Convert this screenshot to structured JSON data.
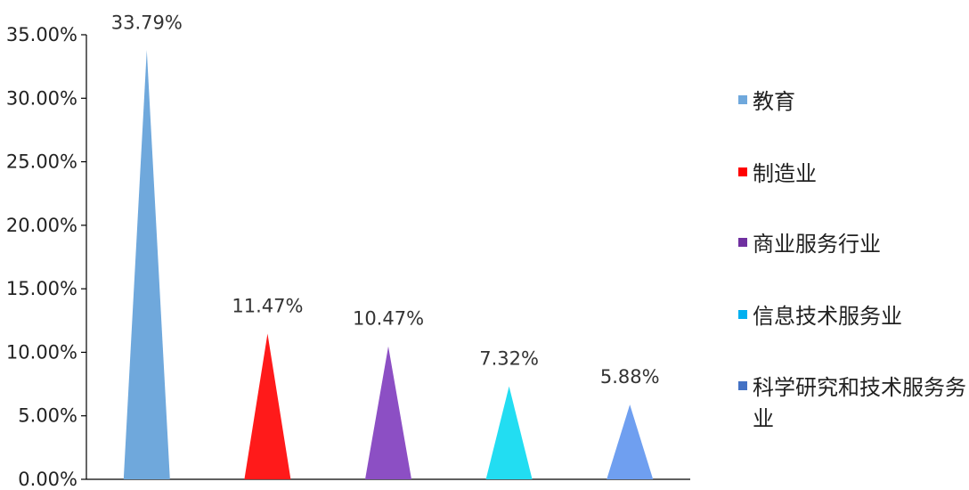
{
  "chart_data": {
    "type": "bar",
    "bar_shape": "triangle",
    "categories": [
      "教育",
      "制造业",
      "商业服务行业",
      "信息技术服务业",
      "科学研究和技术服务业"
    ],
    "values": [
      33.79,
      11.47,
      10.47,
      7.32,
      5.88
    ],
    "data_labels": [
      "33.79%",
      "11.47%",
      "10.47%",
      "7.32%",
      "5.88%"
    ],
    "colors": [
      "#6fa8dc",
      "#ff1a1a",
      "#8c4fc4",
      "#22ddf2",
      "#6f9ff0"
    ],
    "legend_colors": [
      "#6fa8dc",
      "#ff0000",
      "#7030a0",
      "#00b0f0",
      "#4472c4"
    ],
    "y_ticks": [
      "0.00%",
      "5.00%",
      "10.00%",
      "15.00%",
      "20.00%",
      "25.00%",
      "30.00%",
      "35.00%"
    ],
    "ylim": [
      0,
      35
    ],
    "y_unit": "%",
    "grid": false,
    "legend_position": "right",
    "legend": [
      {
        "label_lines": [
          "教育"
        ]
      },
      {
        "label_lines": [
          "制造业"
        ]
      },
      {
        "label_lines": [
          "商业服务行业"
        ]
      },
      {
        "label_lines": [
          "信息技术服务业"
        ]
      },
      {
        "label_lines": [
          "科学研究和技术服务务",
          "业"
        ]
      }
    ]
  }
}
